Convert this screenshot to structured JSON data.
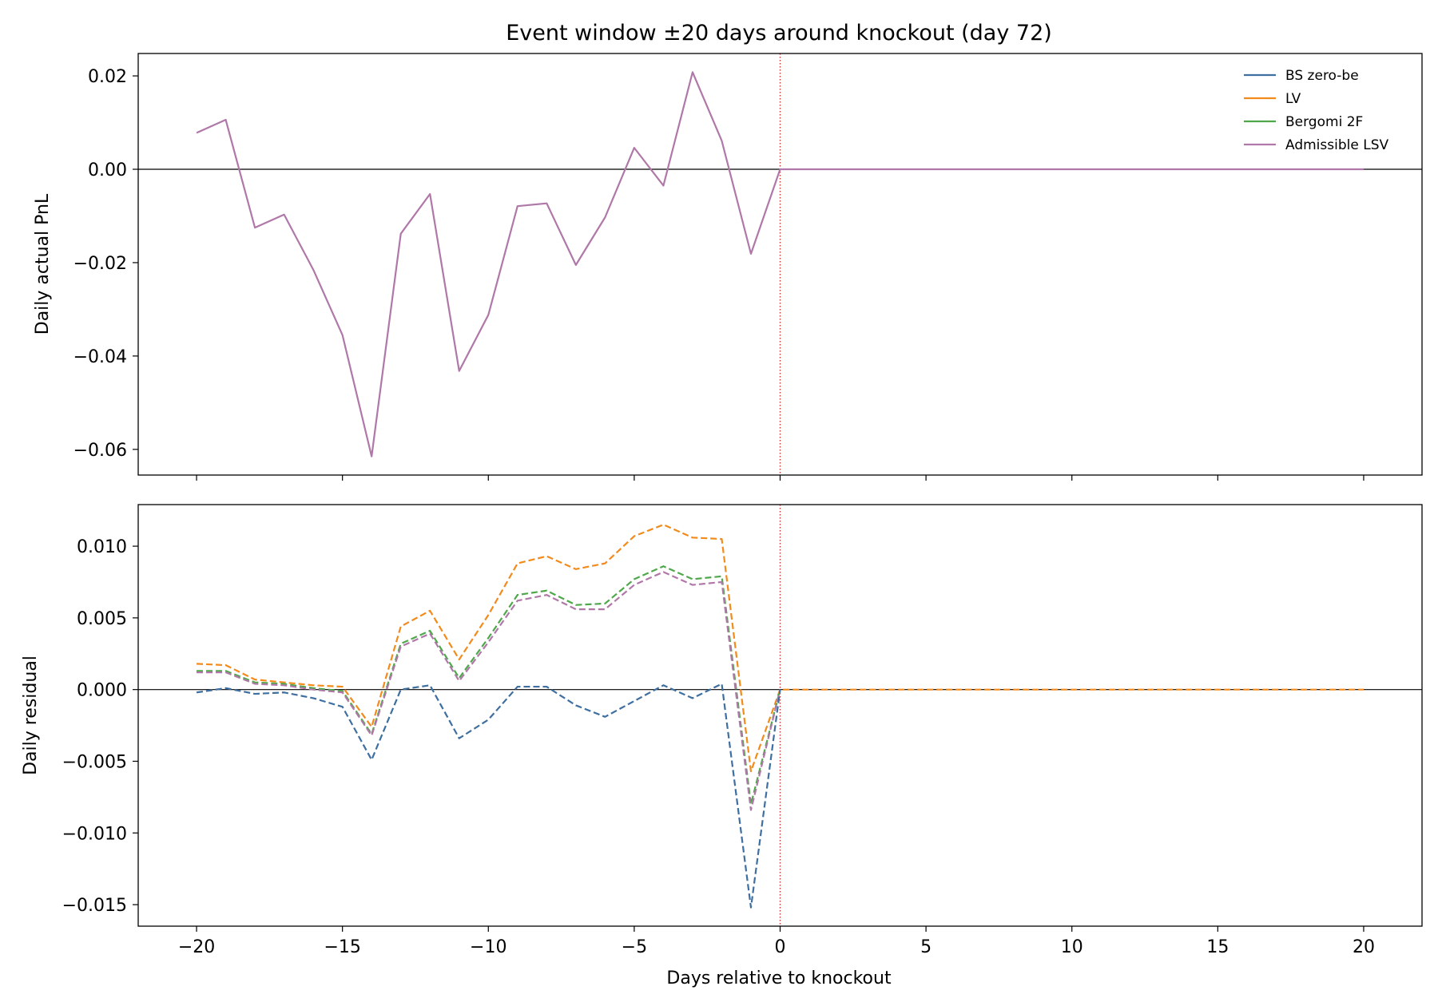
{
  "chart_data": {
    "type": "line",
    "title": "Event window ±20 days around knockout (day 72)",
    "xlabel": "Days relative to knockout",
    "xlim": [
      -22,
      22
    ],
    "xticks": [
      -20,
      -15,
      -10,
      -5,
      0,
      5,
      10,
      15,
      20
    ],
    "xtick_labels": [
      "−20",
      "−15",
      "−10",
      "−5",
      "0",
      "5",
      "10",
      "15",
      "20"
    ],
    "event_marker": {
      "x": 0,
      "color": "#d62728",
      "style": "dotted"
    },
    "legend": {
      "placement": "top-right",
      "entries": [
        {
          "label": "BS zero-be",
          "color": "#3e6fa0"
        },
        {
          "label": "LV",
          "color": "#f28a1c"
        },
        {
          "label": "Bergomi 2F",
          "color": "#4ea84a"
        },
        {
          "label": "Admissible LSV",
          "color": "#b078a8"
        }
      ]
    },
    "panels": [
      {
        "ylabel": "Daily actual PnL",
        "ylim": [
          -0.0655,
          0.0248
        ],
        "yticks": [
          0.02,
          0.0,
          -0.02,
          -0.04,
          -0.06
        ],
        "ytick_labels": [
          "0.02",
          "0.00",
          "−0.02",
          "−0.04",
          "−0.06"
        ],
        "zero_line": true,
        "series": [
          {
            "legend_index": 3,
            "style": "solid",
            "x": [
              -20,
              -19,
              -18,
              -17,
              -16,
              -15,
              -14,
              -13,
              -12,
              -11,
              -10,
              -9,
              -8,
              -7,
              -6,
              -5,
              -4,
              -3,
              -2,
              -1,
              0,
              1,
              2,
              3,
              4,
              5,
              6,
              7,
              8,
              9,
              10,
              11,
              12,
              13,
              14,
              15,
              16,
              17,
              18,
              19,
              20
            ],
            "y": [
              0.0078,
              0.0106,
              -0.0125,
              -0.0097,
              -0.0215,
              -0.0355,
              -0.0615,
              -0.0138,
              -0.0053,
              -0.0432,
              -0.0312,
              -0.0079,
              -0.0073,
              -0.0205,
              -0.0103,
              0.0046,
              -0.0035,
              0.0208,
              0.0061,
              -0.0181,
              0,
              0,
              0,
              0,
              0,
              0,
              0,
              0,
              0,
              0,
              0,
              0,
              0,
              0,
              0,
              0,
              0,
              0,
              0,
              0,
              0
            ]
          }
        ]
      },
      {
        "ylabel": "Daily residual",
        "ylim": [
          -0.0165,
          0.0129
        ],
        "yticks": [
          0.01,
          0.005,
          0.0,
          -0.005,
          -0.01,
          -0.015
        ],
        "ytick_labels": [
          "0.010",
          "0.005",
          "0.000",
          "−0.005",
          "−0.010",
          "−0.015"
        ],
        "zero_line": true,
        "series": [
          {
            "legend_index": 1,
            "style": "dashed",
            "x": [
              -20,
              -19,
              -18,
              -17,
              -16,
              -15,
              -14,
              -13,
              -12,
              -11,
              -10,
              -9,
              -8,
              -7,
              -6,
              -5,
              -4,
              -3,
              -2,
              -1,
              0,
              1,
              2,
              3,
              4,
              5,
              6,
              7,
              8,
              9,
              10,
              11,
              12,
              13,
              14,
              15,
              16,
              17,
              18,
              19,
              20
            ],
            "y": [
              0.0018,
              0.0017,
              0.0007,
              0.0005,
              0.0003,
              0.0002,
              -0.0026,
              0.0044,
              0.0055,
              0.0021,
              0.0052,
              0.0088,
              0.0093,
              0.0084,
              0.0088,
              0.0107,
              0.0115,
              0.0106,
              0.0105,
              -0.0057,
              0,
              0,
              0,
              0,
              0,
              0,
              0,
              0,
              0,
              0,
              0,
              0,
              0,
              0,
              0,
              0,
              0,
              0,
              0,
              0,
              0
            ]
          },
          {
            "legend_index": 2,
            "style": "dashed",
            "x": [
              -20,
              -19,
              -18,
              -17,
              -16,
              -15,
              -14,
              -13,
              -12,
              -11,
              -10,
              -9,
              -8,
              -7,
              -6,
              -5,
              -4,
              -3,
              -2,
              -1,
              0
            ],
            "y": [
              0.0013,
              0.0013,
              0.0005,
              0.0004,
              0.0001,
              -0.0001,
              -0.0031,
              0.0032,
              0.0041,
              0.0008,
              0.0036,
              0.0066,
              0.0069,
              0.0059,
              0.006,
              0.0077,
              0.0086,
              0.0077,
              0.0079,
              -0.008,
              0
            ]
          },
          {
            "legend_index": 3,
            "style": "dashed",
            "x": [
              -20,
              -19,
              -18,
              -17,
              -16,
              -15,
              -14,
              -13,
              -12,
              -11,
              -10,
              -9,
              -8,
              -7,
              -6,
              -5,
              -4,
              -3,
              -2,
              -1,
              0
            ],
            "y": [
              0.0012,
              0.0012,
              0.0004,
              0.0003,
              0.0,
              -0.0002,
              -0.0032,
              0.003,
              0.0039,
              0.0006,
              0.0033,
              0.0062,
              0.0066,
              0.0056,
              0.0056,
              0.0073,
              0.0082,
              0.0073,
              0.0075,
              -0.0084,
              0
            ]
          },
          {
            "legend_index": 0,
            "style": "dashed",
            "x": [
              -20,
              -19,
              -18,
              -17,
              -16,
              -15,
              -14,
              -13,
              -12,
              -11,
              -10,
              -9,
              -8,
              -7,
              -6,
              -5,
              -4,
              -3,
              -2,
              -1,
              0
            ],
            "y": [
              -0.0002,
              0.0001,
              -0.0003,
              -0.0002,
              -0.0006,
              -0.0012,
              -0.0049,
              0.0,
              0.0003,
              -0.0034,
              -0.0021,
              0.0002,
              0.0002,
              -0.0011,
              -0.0019,
              -0.0008,
              0.0003,
              -0.0006,
              0.0004,
              -0.0152,
              0
            ]
          }
        ]
      }
    ]
  }
}
